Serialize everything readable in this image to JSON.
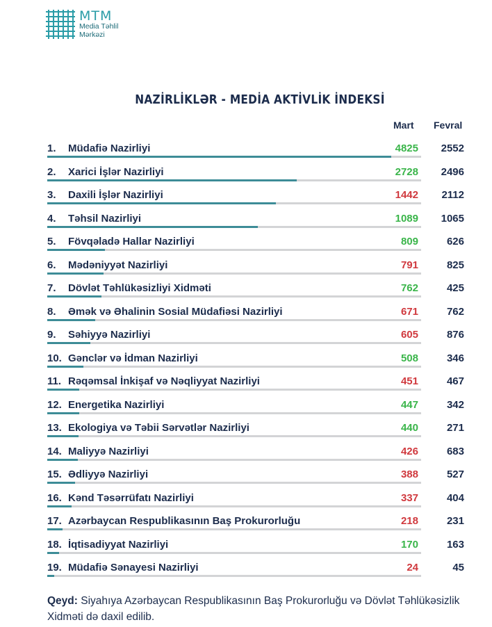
{
  "header": {
    "logo_name": "MTM",
    "logo_sub1": "Media Təhlil",
    "logo_sub2": "Mərkəzi"
  },
  "title": "NAZİRLİKLƏR - MEDİA AKTİVLİK İNDEKSİ",
  "columns": {
    "mart": "Mart",
    "fevral": "Fevral"
  },
  "colors": {
    "increase": "#3ab54a",
    "decrease": "#d0393e",
    "bar": "#3d8c97",
    "track": "#d3d4d6",
    "text": "#1c2c4c",
    "logo": "#2a9ca7"
  },
  "chart_data": {
    "type": "bar",
    "title": "NAZİRLİKLƏR - MEDİA AKTİVLİK İNDEKSİ",
    "series": [
      {
        "name": "Mart",
        "values": [
          4825,
          2728,
          1442,
          1089,
          809,
          791,
          762,
          671,
          605,
          508,
          451,
          447,
          440,
          426,
          388,
          337,
          218,
          170,
          24
        ]
      },
      {
        "name": "Fevral",
        "values": [
          2552,
          2496,
          2112,
          1065,
          626,
          825,
          425,
          762,
          876,
          346,
          467,
          342,
          271,
          683,
          527,
          404,
          231,
          163,
          45
        ]
      }
    ],
    "rows": [
      {
        "rank": "1.",
        "name": "Müdafiə Nazirliyi",
        "mart": 4825,
        "fevral": 2552
      },
      {
        "rank": "2.",
        "name": "Xarici İşlər Nazirliyi",
        "mart": 2728,
        "fevral": 2496
      },
      {
        "rank": "3.",
        "name": "Daxili İşlər Nazirliyi",
        "mart": 1442,
        "fevral": 2112
      },
      {
        "rank": "4.",
        "name": "Təhsil Nazirliyi",
        "mart": 1089,
        "fevral": 1065
      },
      {
        "rank": "5.",
        "name": "Fövqəladə Hallar Nazirliyi",
        "mart": 809,
        "fevral": 626
      },
      {
        "rank": "6.",
        "name": "Mədəniyyət Nazirliyi",
        "mart": 791,
        "fevral": 825
      },
      {
        "rank": "7.",
        "name": "Dövlət Təhlükəsizliyi Xidməti",
        "mart": 762,
        "fevral": 425
      },
      {
        "rank": "8.",
        "name": "Əmək və Əhalinin Sosial Müdafiəsi Nazirliyi",
        "mart": 671,
        "fevral": 762
      },
      {
        "rank": "9.",
        "name": "Səhiyyə Nazirliyi",
        "mart": 605,
        "fevral": 876
      },
      {
        "rank": "10.",
        "name": "Gənclər və İdman Nazirliyi",
        "mart": 508,
        "fevral": 346
      },
      {
        "rank": "11.",
        "name": "Rəqəmsal İnkişaf və Nəqliyyat Nazirliyi",
        "mart": 451,
        "fevral": 467
      },
      {
        "rank": "12.",
        "name": "Energetika Nazirliyi",
        "mart": 447,
        "fevral": 342
      },
      {
        "rank": "13.",
        "name": "Ekologiya və Təbii Sərvətlər Nazirliyi",
        "mart": 440,
        "fevral": 271
      },
      {
        "rank": "14.",
        "name": "Maliyyə Nazirliyi",
        "mart": 426,
        "fevral": 683
      },
      {
        "rank": "15.",
        "name": "Ədliyyə Nazirliyi",
        "mart": 388,
        "fevral": 527
      },
      {
        "rank": "16.",
        "name": "Kənd Təsərrüfatı Nazirliyi",
        "mart": 337,
        "fevral": 404
      },
      {
        "rank": "17.",
        "name": "Azərbaycan Respublikasının Baş Prokurorluğu",
        "mart": 218,
        "fevral": 231
      },
      {
        "rank": "18.",
        "name": "İqtisadiyyat Nazirliyi",
        "mart": 170,
        "fevral": 163
      },
      {
        "rank": "19.",
        "name": "Müdafiə Sənayesi Nazirliyi",
        "mart": 24,
        "fevral": 45
      }
    ],
    "bar_max": 4825
  },
  "note": {
    "label": "Qeyd:",
    "text": "Siyahıya Azərbaycan Respublikasının Baş Prokurorluğu və Dövlət Təhlükəsizlik Xidməti də daxil edilib."
  }
}
